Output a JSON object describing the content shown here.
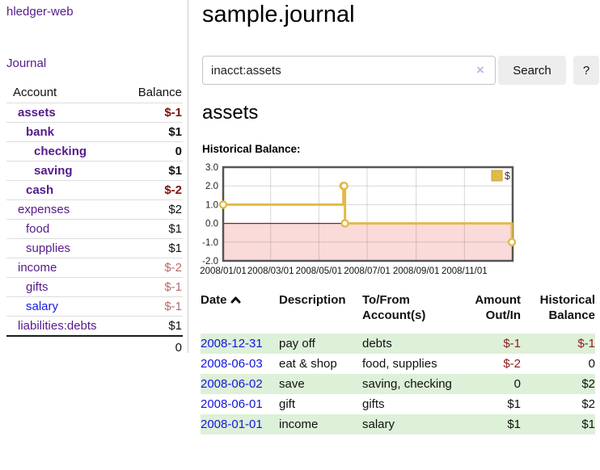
{
  "sidebar": {
    "brand": "hledger-web",
    "nav_journal": "Journal",
    "accounts": {
      "col_account": "Account",
      "col_balance": "Balance",
      "rows": [
        {
          "name": "assets",
          "balance": "$-1"
        },
        {
          "name": "bank",
          "balance": "$1"
        },
        {
          "name": "checking",
          "balance": "0"
        },
        {
          "name": "saving",
          "balance": "$1"
        },
        {
          "name": "cash",
          "balance": "$-2"
        },
        {
          "name": "expenses",
          "balance": "$2"
        },
        {
          "name": "food",
          "balance": "$1"
        },
        {
          "name": "supplies",
          "balance": "$1"
        },
        {
          "name": "income",
          "balance": "$-2"
        },
        {
          "name": "gifts",
          "balance": "$-1"
        },
        {
          "name": "salary",
          "balance": "$-1"
        },
        {
          "name": "liabilities:debts",
          "balance": "$1"
        }
      ],
      "total": "0"
    }
  },
  "header": {
    "title": "sample.journal"
  },
  "search": {
    "value": "inacct:assets",
    "clear_icon": "×",
    "search_label": "Search",
    "help_label": "?"
  },
  "account_page": {
    "heading": "assets",
    "chart_title": "Historical Balance:"
  },
  "chart_data": {
    "type": "line",
    "step": true,
    "title": "Historical Balance",
    "series": [
      {
        "name": "$",
        "color": "#E2BA49",
        "points": [
          {
            "date": "2008-01-01",
            "day": 0,
            "value": 1
          },
          {
            "date": "2008-06-01",
            "day": 152,
            "value": 2
          },
          {
            "date": "2008-06-02",
            "day": 153,
            "value": 2
          },
          {
            "date": "2008-06-03",
            "day": 154,
            "value": 0
          },
          {
            "date": "2008-12-31",
            "day": 365,
            "value": -1
          }
        ]
      }
    ],
    "xlim": [
      0,
      366
    ],
    "ylim": [
      -2,
      3
    ],
    "y_ticks": [
      {
        "v": 3,
        "label": "3.0"
      },
      {
        "v": 2,
        "label": "2.0"
      },
      {
        "v": 1,
        "label": "1.0"
      },
      {
        "v": 0,
        "label": "0.0"
      },
      {
        "v": -1,
        "label": "-1.0"
      },
      {
        "v": -2,
        "label": "-2.0"
      }
    ],
    "x_ticks": [
      {
        "day": 0,
        "label": "2008/01/01"
      },
      {
        "day": 60,
        "label": "2008/03/01"
      },
      {
        "day": 121,
        "label": "2008/05/01"
      },
      {
        "day": 182,
        "label": "2008/07/01"
      },
      {
        "day": 244,
        "label": "2008/09/01"
      },
      {
        "day": 305,
        "label": "2008/11/01"
      }
    ],
    "legend": {
      "label": "$",
      "position": "top-right"
    },
    "grid": true,
    "negative_region_color": "#FBDADA",
    "zero_line_color": "#8B2020",
    "border_color": "#555555"
  },
  "register": {
    "columns": {
      "date": "Date",
      "description": "Description",
      "tofrom": "To/From Account(s)",
      "amount": "Amount Out/In",
      "balance": "Historical Balance"
    },
    "sort": "ascending",
    "rows": [
      {
        "date": "2008-12-31",
        "description": "pay off",
        "accounts": "debts",
        "amount": "$-1",
        "balance": "$-1"
      },
      {
        "date": "2008-06-03",
        "description": "eat & shop",
        "accounts": "food, supplies",
        "amount": "$-2",
        "balance": "0"
      },
      {
        "date": "2008-06-02",
        "description": "save",
        "accounts": "saving, checking",
        "amount": "0",
        "balance": "$2"
      },
      {
        "date": "2008-06-01",
        "description": "gift",
        "accounts": "gifts",
        "amount": "$1",
        "balance": "$2"
      },
      {
        "date": "2008-01-01",
        "description": "income",
        "accounts": "salary",
        "amount": "$1",
        "balance": "$1"
      }
    ]
  }
}
